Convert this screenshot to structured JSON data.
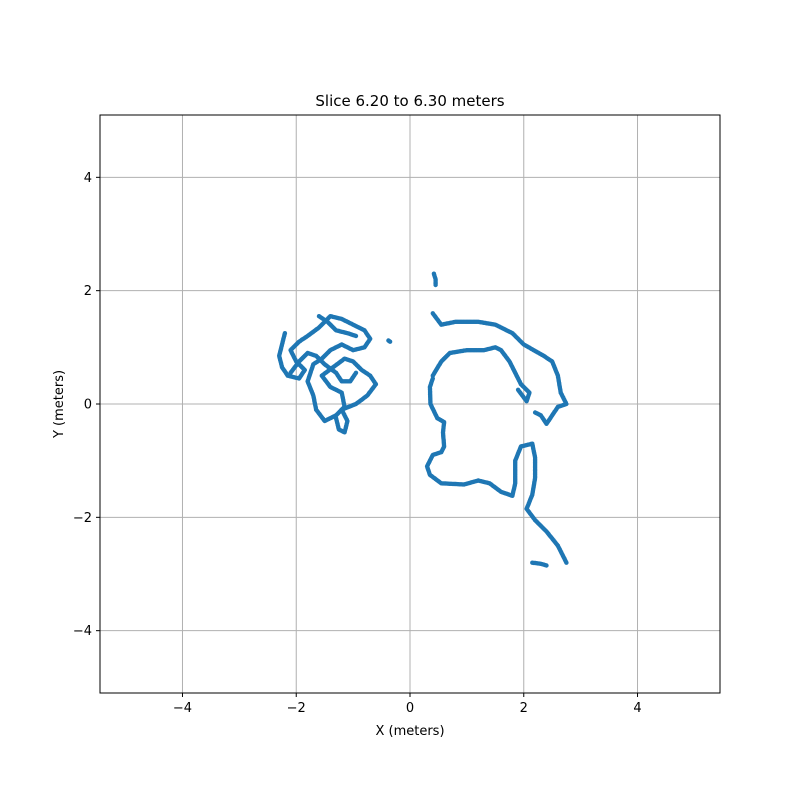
{
  "chart_data": {
    "type": "scatter",
    "title": "Slice 6.20 to 6.30 meters",
    "xlabel": "X (meters)",
    "ylabel": "Y (meters)",
    "xlim": [
      -5.45,
      5.45
    ],
    "ylim": [
      -5.1,
      5.1
    ],
    "x_ticks": [
      -4,
      -2,
      0,
      2,
      4
    ],
    "y_ticks": [
      -4,
      -2,
      0,
      2,
      4
    ],
    "x_tick_labels": [
      "−4",
      "−2",
      "0",
      "2",
      "4"
    ],
    "y_tick_labels": [
      "−4",
      "−2",
      "0",
      "2",
      "4"
    ],
    "grid": true,
    "point_color": "#1f77b4",
    "series": [
      {
        "points_by_stroke": [
          [
            [
              0.4,
              0.45
            ],
            [
              0.35,
              0.3
            ],
            [
              0.36,
              0.0
            ],
            [
              0.48,
              -0.25
            ],
            [
              0.6,
              -0.32
            ],
            [
              0.58,
              -0.5
            ],
            [
              0.6,
              -0.75
            ],
            [
              0.55,
              -0.85
            ],
            [
              0.4,
              -0.9
            ],
            [
              0.3,
              -1.1
            ],
            [
              0.35,
              -1.25
            ],
            [
              0.55,
              -1.4
            ],
            [
              0.95,
              -1.42
            ],
            [
              1.2,
              -1.35
            ],
            [
              1.4,
              -1.4
            ],
            [
              1.6,
              -1.55
            ],
            [
              1.8,
              -1.62
            ],
            [
              1.85,
              -1.4
            ],
            [
              1.85,
              -1.0
            ],
            [
              1.95,
              -0.75
            ],
            [
              2.15,
              -0.7
            ],
            [
              2.2,
              -0.95
            ],
            [
              2.2,
              -1.3
            ],
            [
              2.15,
              -1.6
            ],
            [
              2.05,
              -1.85
            ],
            [
              2.2,
              -2.05
            ],
            [
              2.4,
              -2.25
            ],
            [
              2.6,
              -2.5
            ],
            [
              2.75,
              -2.8
            ]
          ],
          [
            [
              0.4,
              1.6
            ],
            [
              0.55,
              1.4
            ],
            [
              0.8,
              1.45
            ],
            [
              1.2,
              1.45
            ],
            [
              1.5,
              1.4
            ],
            [
              1.8,
              1.25
            ],
            [
              2.0,
              1.05
            ],
            [
              2.35,
              0.85
            ],
            [
              2.5,
              0.75
            ],
            [
              2.6,
              0.5
            ],
            [
              2.65,
              0.2
            ],
            [
              2.75,
              0.0
            ],
            [
              2.6,
              -0.05
            ],
            [
              2.5,
              -0.2
            ],
            [
              2.4,
              -0.35
            ],
            [
              2.3,
              -0.2
            ],
            [
              2.2,
              -0.15
            ]
          ],
          [
            [
              0.4,
              0.5
            ],
            [
              0.55,
              0.75
            ],
            [
              0.7,
              0.9
            ],
            [
              1.0,
              0.95
            ],
            [
              1.3,
              0.95
            ],
            [
              1.5,
              1.0
            ],
            [
              1.6,
              0.95
            ],
            [
              1.75,
              0.75
            ],
            [
              1.85,
              0.55
            ],
            [
              1.95,
              0.35
            ],
            [
              2.1,
              0.2
            ],
            [
              2.05,
              0.05
            ],
            [
              1.9,
              0.25
            ]
          ],
          [
            [
              0.42,
              2.3
            ],
            [
              0.45,
              2.2
            ],
            [
              0.45,
              2.1
            ]
          ],
          [
            [
              2.15,
              -2.8
            ],
            [
              2.3,
              -2.82
            ],
            [
              2.4,
              -2.85
            ]
          ],
          [
            [
              -2.2,
              1.25
            ],
            [
              -2.25,
              1.05
            ],
            [
              -2.3,
              0.85
            ],
            [
              -2.25,
              0.65
            ],
            [
              -2.15,
              0.5
            ],
            [
              -1.95,
              0.45
            ],
            [
              -1.85,
              0.6
            ],
            [
              -2.0,
              0.75
            ],
            [
              -2.1,
              0.95
            ],
            [
              -1.95,
              1.1
            ],
            [
              -1.8,
              1.2
            ],
            [
              -1.6,
              1.35
            ],
            [
              -1.4,
              1.55
            ],
            [
              -1.2,
              1.5
            ],
            [
              -1.0,
              1.4
            ],
            [
              -0.8,
              1.3
            ],
            [
              -0.7,
              1.15
            ],
            [
              -0.8,
              1.0
            ],
            [
              -1.0,
              0.95
            ],
            [
              -1.2,
              1.05
            ],
            [
              -1.4,
              0.95
            ],
            [
              -1.55,
              0.8
            ],
            [
              -1.7,
              0.7
            ],
            [
              -1.8,
              0.4
            ],
            [
              -1.7,
              0.15
            ],
            [
              -1.65,
              -0.1
            ],
            [
              -1.5,
              -0.3
            ],
            [
              -1.3,
              -0.2
            ],
            [
              -1.15,
              -0.05
            ],
            [
              -1.2,
              0.2
            ],
            [
              -1.4,
              0.3
            ],
            [
              -1.55,
              0.5
            ],
            [
              -1.35,
              0.65
            ],
            [
              -1.15,
              0.8
            ],
            [
              -1.0,
              0.75
            ],
            [
              -0.85,
              0.6
            ],
            [
              -0.7,
              0.5
            ],
            [
              -0.6,
              0.35
            ],
            [
              -0.75,
              0.15
            ],
            [
              -0.95,
              0.0
            ],
            [
              -1.2,
              -0.1
            ],
            [
              -1.1,
              -0.3
            ],
            [
              -1.15,
              -0.5
            ],
            [
              -1.25,
              -0.45
            ],
            [
              -1.3,
              -0.25
            ]
          ],
          [
            [
              -2.1,
              0.55
            ],
            [
              -1.95,
              0.75
            ],
            [
              -1.8,
              0.9
            ],
            [
              -1.65,
              0.85
            ],
            [
              -1.5,
              0.7
            ],
            [
              -1.3,
              0.55
            ],
            [
              -1.2,
              0.4
            ],
            [
              -1.05,
              0.4
            ],
            [
              -0.95,
              0.55
            ]
          ],
          [
            [
              -1.6,
              1.55
            ],
            [
              -1.45,
              1.45
            ],
            [
              -1.3,
              1.3
            ],
            [
              -1.1,
              1.25
            ],
            [
              -0.95,
              1.2
            ]
          ],
          [
            [
              -0.38,
              1.12
            ],
            [
              -0.35,
              1.1
            ]
          ]
        ]
      }
    ]
  }
}
